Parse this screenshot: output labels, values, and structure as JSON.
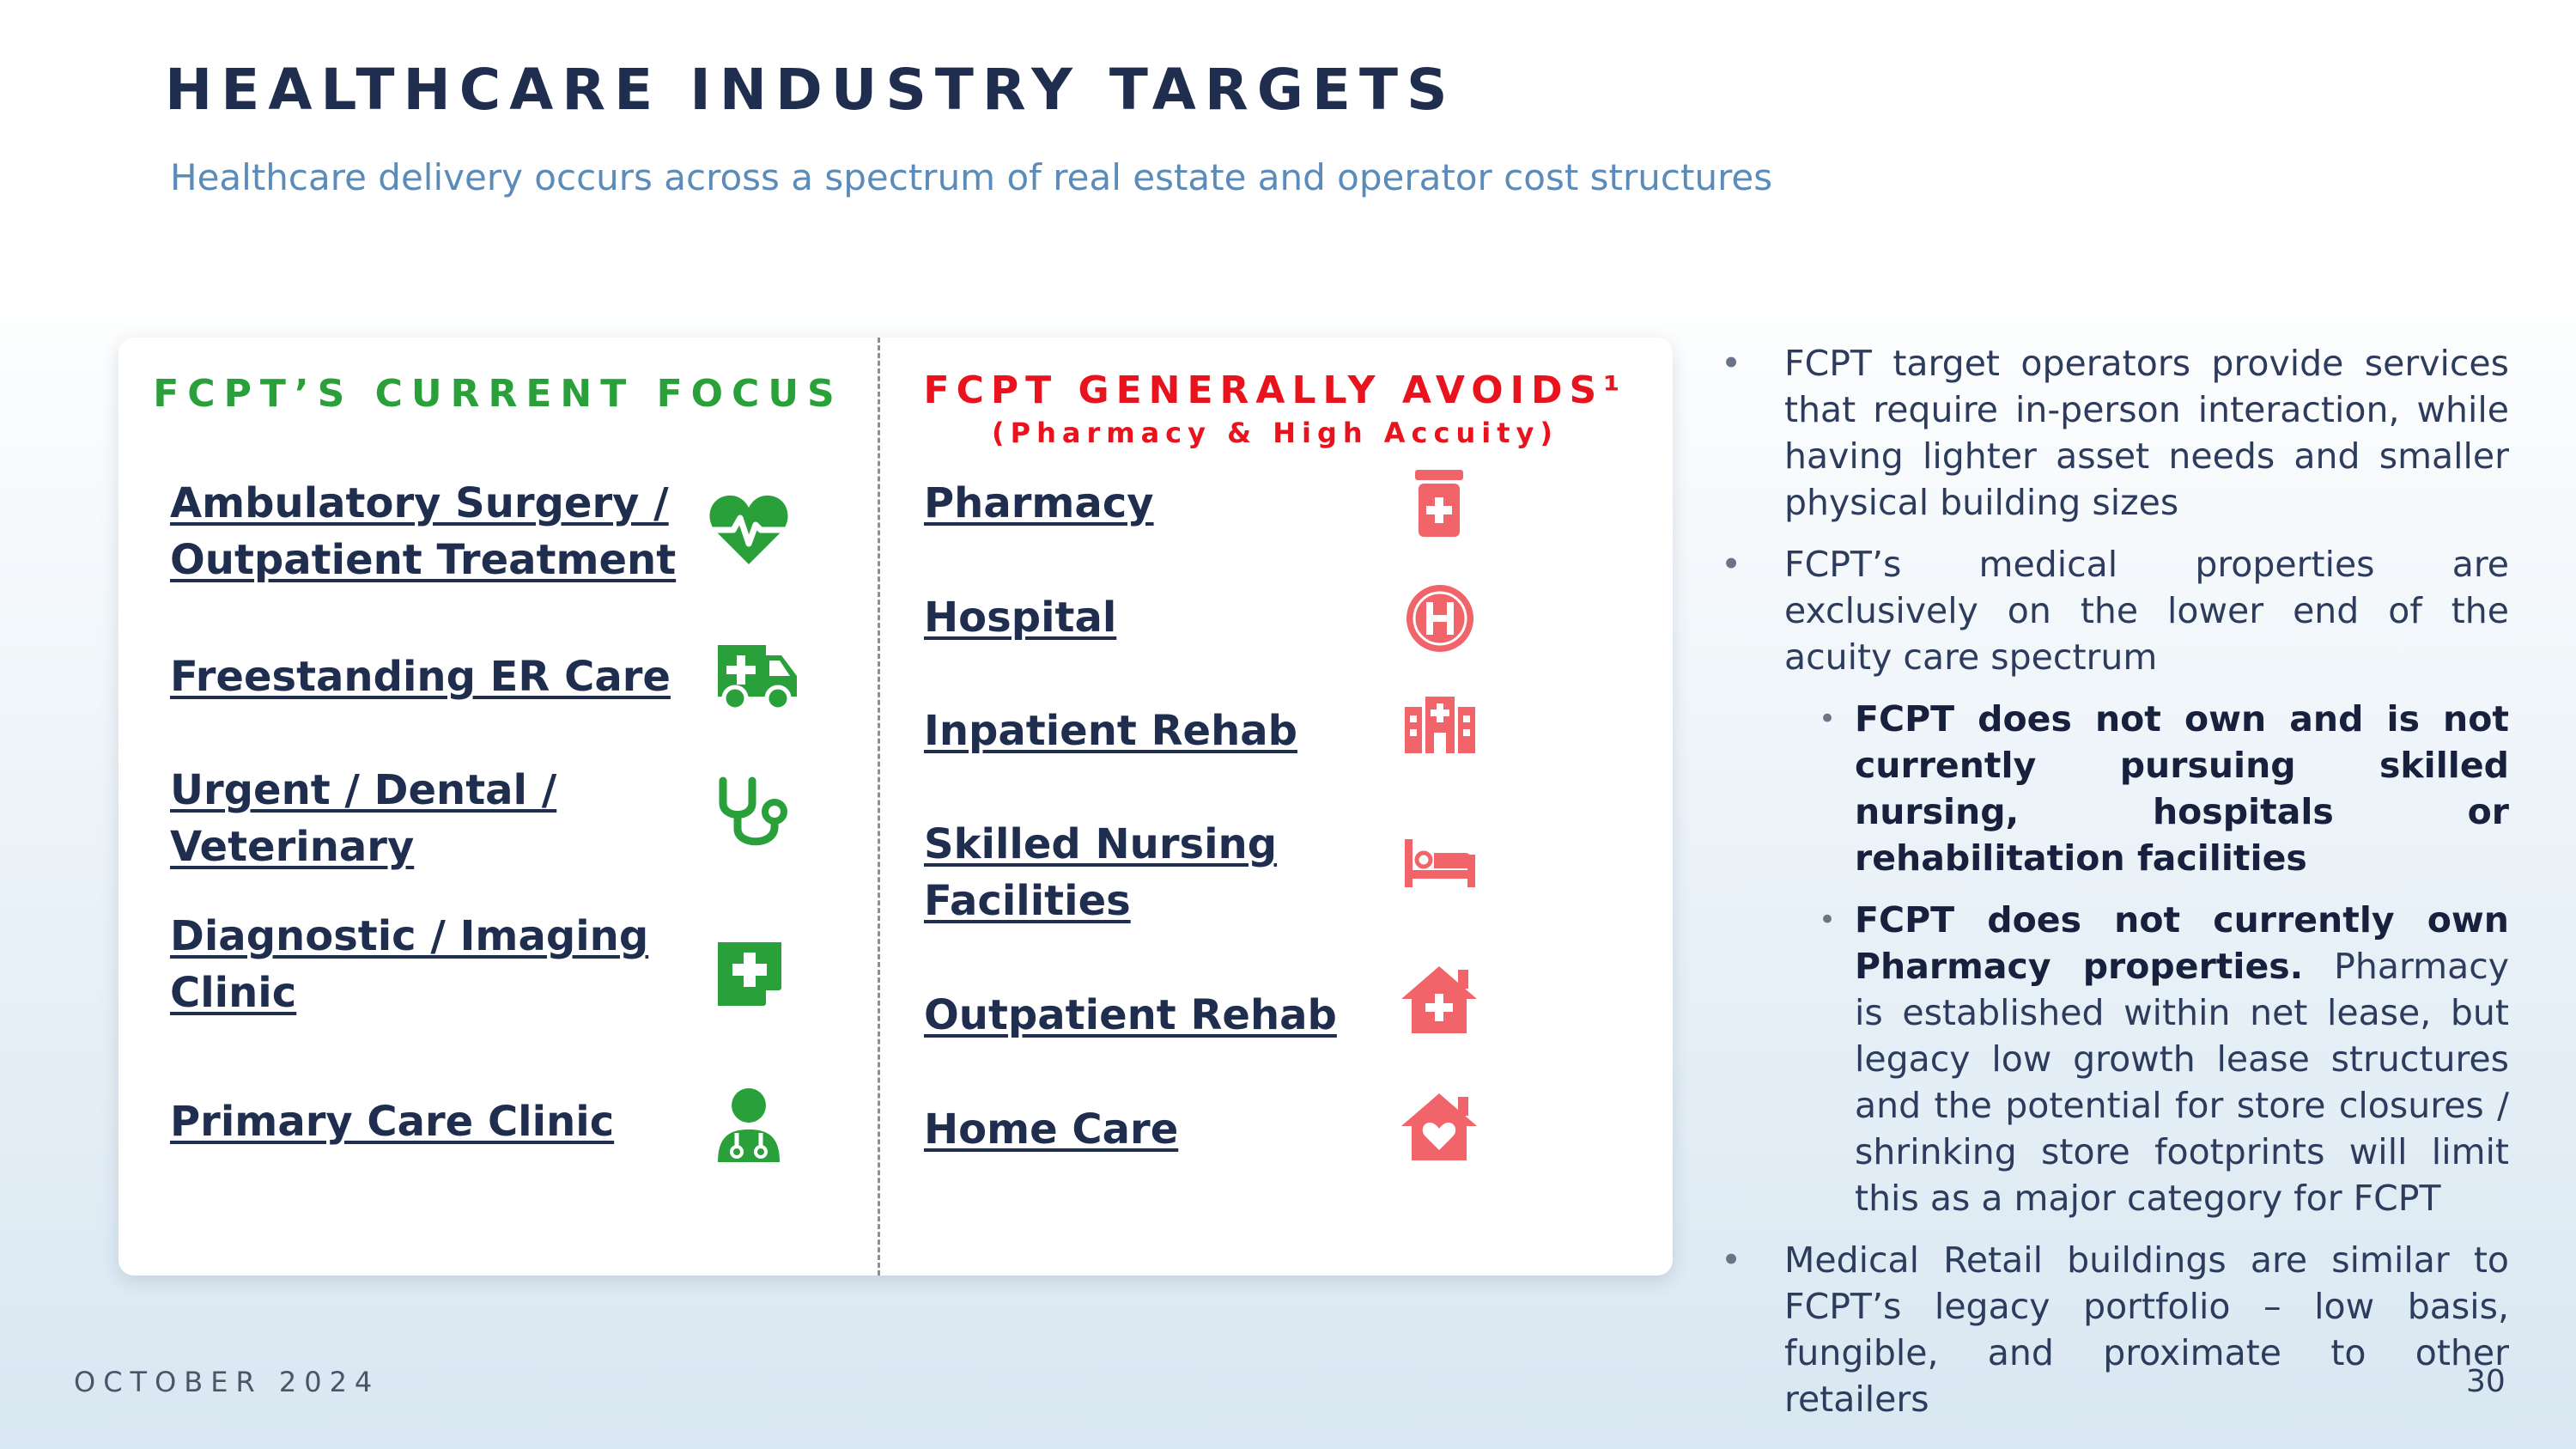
{
  "header": {
    "title": "HEALTHCARE INDUSTRY TARGETS",
    "subtitle": "Healthcare delivery occurs across a spectrum of real estate and operator cost structures"
  },
  "focus": {
    "heading": "FCPT’S CURRENT FOCUS",
    "items": [
      {
        "lines": [
          "Ambulatory Surgery /",
          "Outpatient Treatment"
        ],
        "icon": "heart-pulse-icon"
      },
      {
        "lines": [
          "Freestanding ER Care"
        ],
        "icon": "ambulance-icon"
      },
      {
        "lines": [
          "Urgent / Dental /",
          "Veterinary"
        ],
        "icon": "stethoscope-icon"
      },
      {
        "lines": [
          "Diagnostic / Imaging",
          "Clinic"
        ],
        "icon": "medical-file-icon"
      },
      {
        "lines": [
          "Primary Care Clinic"
        ],
        "icon": "doctor-icon"
      }
    ],
    "color": "#2aa03a"
  },
  "avoids": {
    "heading": "FCPT GENERALLY AVOIDS¹",
    "subheading": "(Pharmacy & High Accuity)",
    "items": [
      {
        "lines": [
          "Pharmacy"
        ],
        "icon": "pill-bottle-icon"
      },
      {
        "lines": [
          "Hospital"
        ],
        "icon": "hospital-h-icon"
      },
      {
        "lines": [
          "Inpatient Rehab"
        ],
        "icon": "hospital-building-icon"
      },
      {
        "lines": [
          "Skilled Nursing",
          "Facilities"
        ],
        "icon": "bed-icon"
      },
      {
        "lines": [
          "Outpatient Rehab"
        ],
        "icon": "house-medical-icon"
      },
      {
        "lines": [
          "Home Care"
        ],
        "icon": "house-heart-icon"
      }
    ],
    "color": "#e8131d",
    "icon_color": "#f0646a"
  },
  "bullets": {
    "b1": "FCPT target operators provide services that require in-person interaction, while having lighter asset needs and smaller physical building sizes",
    "b2": "FCPT’s medical properties are exclusively on the lower end of the acuity care spectrum",
    "b2a": "FCPT does not own and is not currently pursuing skilled nursing, hospitals or rehabilitation facilities",
    "b2b_bold": "FCPT does not currently own Pharmacy properties.",
    "b2b_rest": " Pharmacy is established within net lease, but legacy low growth lease structures and the potential for store closures / shrinking store footprints will limit this as a major category for FCPT",
    "b3": "Medical Retail buildings are similar to FCPT’s legacy portfolio – low basis, fungible, and proximate to other retailers"
  },
  "footer": {
    "date": "OCTOBER 2024",
    "page": "30"
  },
  "colors": {
    "navy": "#1f2d4e",
    "subtitle_blue": "#5b8bb8"
  }
}
